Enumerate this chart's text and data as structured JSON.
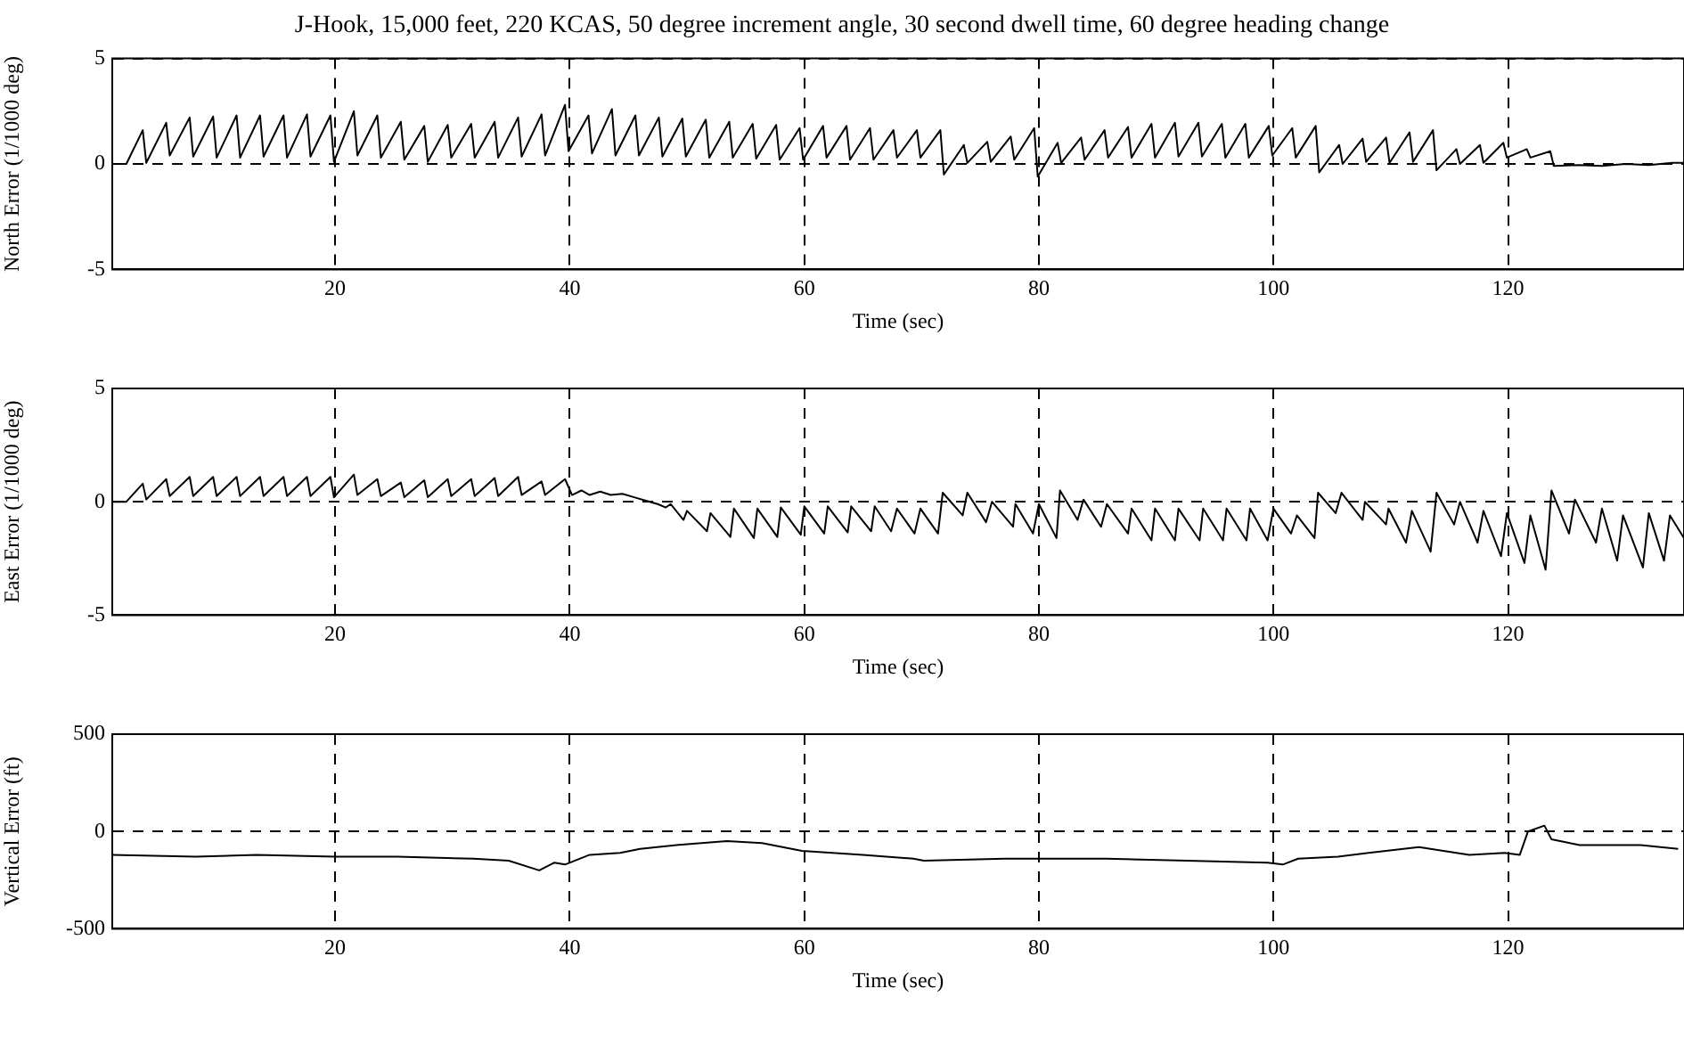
{
  "chart_data": [
    {
      "type": "line",
      "title": "J-Hook, 15,000 feet, 220 KCAS, 50 degree increment angle, 30 second dwell time, 60 degree heading change",
      "xlabel": "Time (sec)",
      "ylabel": "North Error (1/1000 deg)",
      "color": "#000000",
      "xlim": [
        1,
        135
      ],
      "xticks": [
        20,
        40,
        60,
        80,
        100,
        120
      ],
      "ylim": [
        -5,
        5
      ],
      "yticks": [
        -5,
        0,
        5
      ],
      "grid": true,
      "x": [
        1,
        2.2,
        3.6,
        3.9,
        5.6,
        5.9,
        7.6,
        7.9,
        9.6,
        9.9,
        11.6,
        11.9,
        13.6,
        13.9,
        15.6,
        15.9,
        17.6,
        17.9,
        19.6,
        19.9,
        21.6,
        21.9,
        23.6,
        23.9,
        25.6,
        25.9,
        27.6,
        27.9,
        29.6,
        29.9,
        31.6,
        31.9,
        33.6,
        33.9,
        35.6,
        35.9,
        37.6,
        37.9,
        39.6,
        39.9,
        41.6,
        41.9,
        43.6,
        43.9,
        45.6,
        45.9,
        47.6,
        47.9,
        49.6,
        49.9,
        51.6,
        51.9,
        53.6,
        53.9,
        55.6,
        55.9,
        57.6,
        57.9,
        59.6,
        59.9,
        61.6,
        61.9,
        63.6,
        63.9,
        65.6,
        65.9,
        67.6,
        67.9,
        69.6,
        69.9,
        71.6,
        71.9,
        73.6,
        73.9,
        75.6,
        75.9,
        77.6,
        77.9,
        79.6,
        79.9,
        81.6,
        81.9,
        83.6,
        83.9,
        85.6,
        85.9,
        87.6,
        87.9,
        89.6,
        89.9,
        91.6,
        91.9,
        93.6,
        93.9,
        95.6,
        95.9,
        97.6,
        97.9,
        99.6,
        99.9,
        101.6,
        101.9,
        103.6,
        103.9,
        105.6,
        105.9,
        107.6,
        107.9,
        109.6,
        109.9,
        111.6,
        111.9,
        113.6,
        113.9,
        115.6,
        115.9,
        117.6,
        117.9,
        119.6,
        119.9,
        121.6,
        121.9,
        123.6,
        123.9,
        126,
        128,
        130,
        132,
        134,
        135
      ],
      "values": [
        0,
        0,
        1.6,
        0.05,
        1.95,
        0.4,
        2.2,
        0.35,
        2.25,
        0.3,
        2.3,
        0.3,
        2.3,
        0.35,
        2.3,
        0.3,
        2.35,
        0.35,
        2.3,
        0.1,
        2.5,
        0.4,
        2.3,
        0.3,
        2.0,
        0.2,
        1.8,
        0.1,
        1.85,
        0.3,
        1.9,
        0.3,
        2.0,
        0.3,
        2.2,
        0.35,
        2.35,
        0.4,
        2.8,
        0.6,
        2.3,
        0.5,
        2.6,
        0.4,
        2.3,
        0.4,
        2.2,
        0.35,
        2.15,
        0.35,
        2.1,
        0.3,
        2.0,
        0.3,
        1.9,
        0.25,
        1.85,
        0.2,
        1.7,
        0.2,
        1.8,
        0.3,
        1.8,
        0.2,
        1.7,
        0.2,
        1.6,
        0.3,
        1.6,
        0.3,
        1.6,
        -0.5,
        0.9,
        0.05,
        1.05,
        0.1,
        1.3,
        0.2,
        1.7,
        -0.6,
        1.0,
        0.05,
        1.25,
        0.2,
        1.6,
        0.3,
        1.75,
        0.3,
        1.9,
        0.3,
        1.95,
        0.35,
        1.95,
        0.35,
        1.9,
        0.3,
        1.9,
        0.3,
        1.8,
        0.4,
        1.7,
        0.3,
        1.8,
        -0.4,
        0.9,
        0.0,
        1.2,
        0.1,
        1.25,
        0.05,
        1.5,
        0.1,
        1.6,
        -0.3,
        0.7,
        0.0,
        0.9,
        0.05,
        1.0,
        0.3,
        0.7,
        0.3,
        0.6,
        -0.1,
        -0.05,
        -0.1,
        0,
        -0.05,
        0.05,
        0.05
      ]
    },
    {
      "type": "line",
      "xlabel": "Time (sec)",
      "ylabel": "East Error (1/1000 deg)",
      "color": "#000000",
      "xlim": [
        1,
        135
      ],
      "xticks": [
        20,
        40,
        60,
        80,
        100,
        120
      ],
      "ylim": [
        -5,
        5
      ],
      "yticks": [
        -5,
        0,
        5
      ],
      "grid": true,
      "x": [
        1,
        2.2,
        3.6,
        3.9,
        5.6,
        5.9,
        7.6,
        7.9,
        9.6,
        9.9,
        11.6,
        11.9,
        13.6,
        13.9,
        15.6,
        15.9,
        17.6,
        17.9,
        19.6,
        19.9,
        21.6,
        21.9,
        23.6,
        23.9,
        25.6,
        25.9,
        27.6,
        27.9,
        29.6,
        29.9,
        31.6,
        31.9,
        33.6,
        33.9,
        35.6,
        35.9,
        37.6,
        37.9,
        39.6,
        40.2,
        41,
        41.7,
        42.6,
        43.5,
        44.5,
        45.5,
        46.5,
        47.5,
        48.2,
        48.6,
        49.7,
        50.0,
        51.7,
        52.0,
        53.7,
        54.0,
        55.7,
        56.0,
        57.7,
        58.0,
        59.7,
        60.0,
        61.7,
        62.0,
        63.7,
        64.0,
        65.7,
        66.0,
        67.4,
        67.9,
        69.4,
        69.9,
        71.4,
        71.8,
        73.5,
        73.9,
        75.5,
        76.0,
        77.8,
        78.0,
        79.5,
        80.0,
        81.5,
        81.8,
        83.3,
        83.8,
        85.3,
        85.8,
        87.6,
        87.9,
        89.6,
        89.9,
        91.6,
        91.9,
        93.7,
        94.0,
        95.7,
        96.0,
        97.7,
        98.0,
        99.5,
        100.0,
        101.5,
        102.0,
        103.5,
        103.8,
        105.3,
        105.8,
        107.6,
        107.8,
        109.6,
        109.8,
        111.3,
        111.8,
        113.4,
        113.9,
        115.4,
        115.9,
        117.4,
        117.9,
        119.4,
        119.9,
        121.4,
        121.9,
        123.2,
        123.7,
        125.2,
        125.7,
        127.5,
        128.0,
        129.3,
        129.8,
        131.5,
        132.0,
        133.3,
        133.8,
        135
      ],
      "values": [
        0,
        0,
        0.8,
        0.1,
        1.0,
        0.25,
        1.1,
        0.25,
        1.1,
        0.25,
        1.1,
        0.25,
        1.1,
        0.25,
        1.1,
        0.25,
        1.1,
        0.25,
        1.1,
        0.2,
        1.2,
        0.3,
        1.0,
        0.25,
        0.85,
        0.2,
        0.95,
        0.2,
        1.0,
        0.25,
        1.0,
        0.25,
        1.05,
        0.25,
        1.1,
        0.3,
        0.9,
        0.3,
        1.0,
        0.3,
        0.5,
        0.3,
        0.45,
        0.3,
        0.35,
        0.2,
        0.05,
        -0.1,
        -0.25,
        -0.1,
        -0.8,
        -0.4,
        -1.3,
        -0.5,
        -1.55,
        -0.3,
        -1.6,
        -0.3,
        -1.55,
        -0.25,
        -1.45,
        -0.2,
        -1.4,
        -0.2,
        -1.35,
        -0.2,
        -1.3,
        -0.2,
        -1.3,
        -0.3,
        -1.4,
        -0.3,
        -1.4,
        0.4,
        -0.6,
        0.4,
        -0.9,
        0,
        -1.1,
        -0.1,
        -1.4,
        -0.1,
        -1.6,
        0.5,
        -0.8,
        0.1,
        -1.1,
        -0.1,
        -1.4,
        -0.3,
        -1.7,
        -0.3,
        -1.7,
        -0.3,
        -1.7,
        -0.3,
        -1.7,
        -0.3,
        -1.7,
        -0.3,
        -1.7,
        -0.3,
        -1.4,
        -0.6,
        -1.6,
        0.4,
        -0.5,
        0.4,
        -0.8,
        0,
        -1.0,
        -0.3,
        -1.8,
        -0.4,
        -2.2,
        0.4,
        -1.0,
        0,
        -1.8,
        -0.4,
        -2.4,
        -0.5,
        -2.7,
        -0.6,
        -3.0,
        0.5,
        -1.4,
        0.1,
        -1.8,
        -0.3,
        -2.6,
        -0.6,
        -2.9,
        -0.5,
        -2.6,
        -0.6,
        -1.6
      ]
    },
    {
      "type": "line",
      "xlabel": "Time (sec)",
      "ylabel": "Vertical Error (ft)",
      "color": "#000000",
      "xlim": [
        1,
        135
      ],
      "xticks": [
        20,
        40,
        60,
        80,
        100,
        120
      ],
      "ylim": [
        -500,
        500
      ],
      "yticks": [
        -500,
        0,
        500
      ],
      "grid": true,
      "x": [
        1,
        8.1,
        13.3,
        20,
        25.3,
        31.8,
        34.8,
        37.4,
        38.7,
        39.6,
        41.7,
        44.3,
        46,
        49.1,
        53.4,
        56.4,
        59.8,
        65,
        69.3,
        70.2,
        77.1,
        85.7,
        92.6,
        99.5,
        100.8,
        102.1,
        105.5,
        108.1,
        112.4,
        116.7,
        119.7,
        121,
        121.7,
        123.1,
        123.7,
        126.1,
        131.3,
        134.5
      ],
      "values": [
        -120,
        -130,
        -120,
        -130,
        -130,
        -140,
        -150,
        -200,
        -160,
        -170,
        -120,
        -110,
        -90,
        -70,
        -50,
        -60,
        -100,
        -120,
        -140,
        -150,
        -140,
        -140,
        -150,
        -160,
        -170,
        -140,
        -130,
        -110,
        -80,
        -120,
        -110,
        -120,
        0,
        30,
        -40,
        -70,
        -70,
        -90
      ]
    }
  ]
}
